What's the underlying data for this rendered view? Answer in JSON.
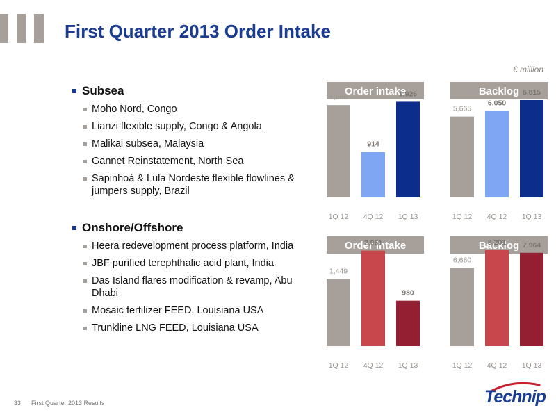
{
  "header": {
    "title": "First Quarter 2013 Order Intake"
  },
  "unit": "€ million",
  "sections": [
    {
      "heading": "Subsea",
      "items": [
        "Moho Nord, Congo",
        "Lianzi flexible supply, Congo & Angola",
        "Malikai subsea, Malaysia",
        "Gannet Reinstatement, North Sea",
        "Sapinhoá & Lula Nordeste flexible flowlines & jumpers supply, Brazil"
      ]
    },
    {
      "heading": "Onshore/Offshore",
      "items": [
        "Heera redevelopment process platform, India",
        "JBF purified terephthalic acid plant, India",
        "Das Island flares modification & revamp, Abu Dhabi",
        "Mosaic fertilizer FEED, Louisiana USA",
        "Trunkline LNG FEED, Louisiana USA"
      ]
    }
  ],
  "footer": {
    "page": "33",
    "text": "First Quarter 2013 Results"
  },
  "logo": {
    "text": "Technip"
  },
  "colors": {
    "title_blue": "#1a3d8f",
    "grey": "#a7a09a",
    "light_blue": "#7fa6f2",
    "dark_blue": "#0d2d8c",
    "red": "#c8474c",
    "dark_red": "#951f32"
  },
  "chart_data": [
    {
      "type": "bar",
      "title": "Order intake",
      "categories": [
        "1Q 12",
        "4Q 12",
        "1Q 13"
      ],
      "values": [
        1860,
        914,
        1926
      ],
      "labels": [
        "1,860",
        "914",
        "1,926"
      ],
      "colors": [
        "#a7a09a",
        "#7fa6f2",
        "#0d2d8c"
      ],
      "ylim": [
        0,
        2100
      ]
    },
    {
      "type": "bar",
      "title": "Backlog",
      "categories": [
        "1Q 12",
        "4Q 12",
        "1Q 13"
      ],
      "values": [
        5665,
        6050,
        6815
      ],
      "labels": [
        "5,665",
        "6,050",
        "6,815"
      ],
      "colors": [
        "#a7a09a",
        "#7fa6f2",
        "#0d2d8c"
      ],
      "ylim": [
        0,
        7300
      ]
    },
    {
      "type": "bar",
      "title": "Order intake",
      "categories": [
        "1Q 12",
        "4Q 12",
        "1Q 13"
      ],
      "values": [
        1449,
        2061,
        980
      ],
      "labels": [
        "1,449",
        "2,061",
        "980"
      ],
      "colors": [
        "#a7a09a",
        "#c8474c",
        "#951f32"
      ],
      "ylim": [
        0,
        2250
      ]
    },
    {
      "type": "bar",
      "title": "Backlog",
      "categories": [
        "1Q 12",
        "4Q 12",
        "1Q 13"
      ],
      "values": [
        6680,
        8201,
        7964
      ],
      "labels": [
        "6,680",
        "8,201",
        "7,964"
      ],
      "colors": [
        "#a7a09a",
        "#c8474c",
        "#951f32"
      ],
      "ylim": [
        0,
        8900
      ]
    }
  ]
}
